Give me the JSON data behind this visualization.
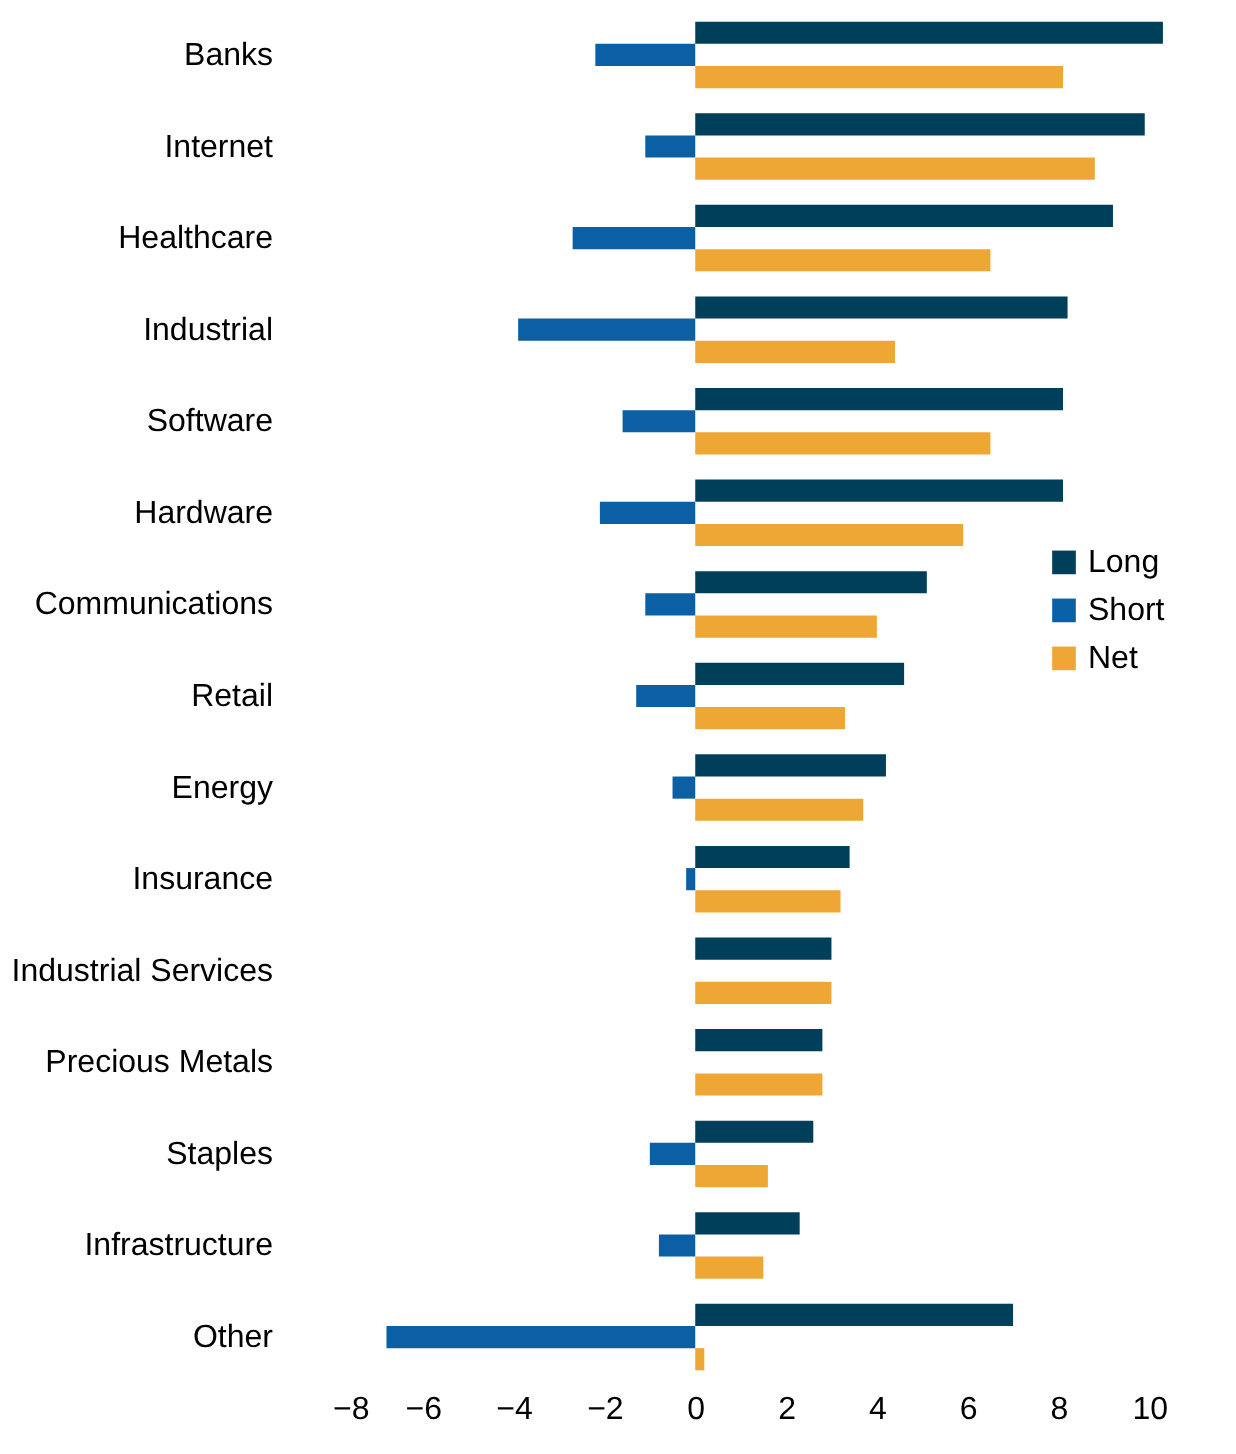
{
  "chart_data": {
    "type": "bar",
    "orientation": "horizontal",
    "categories": [
      "Banks",
      "Internet",
      "Healthcare",
      "Industrial",
      "Software",
      "Hardware",
      "Communications",
      "Retail",
      "Energy",
      "Insurance",
      "Industrial Services",
      "Precious Metals",
      "Staples",
      "Infrastructure",
      "Other"
    ],
    "series": [
      {
        "name": "Long",
        "color": "#003f5a",
        "values": [
          10.3,
          9.9,
          9.2,
          8.2,
          8.1,
          8.1,
          5.1,
          4.6,
          4.2,
          3.4,
          3.0,
          2.8,
          2.6,
          2.3,
          7.0
        ]
      },
      {
        "name": "Short",
        "color": "#0b5fa5",
        "values": [
          -2.2,
          -1.1,
          -2.7,
          -3.9,
          -1.6,
          -2.1,
          -1.1,
          -1.3,
          -0.5,
          -0.2,
          null,
          null,
          -1.0,
          -0.8,
          -6.8
        ]
      },
      {
        "name": "Net",
        "color": "#eea734",
        "values": [
          8.1,
          8.8,
          6.5,
          4.4,
          6.5,
          5.9,
          4.0,
          3.3,
          3.7,
          3.2,
          3.0,
          2.8,
          1.6,
          1.5,
          0.2
        ]
      }
    ],
    "xlim": [
      -8,
      10.5
    ],
    "xticks": [
      -8,
      -6,
      -4,
      -2,
      0,
      2,
      4,
      6,
      8,
      10
    ],
    "legend": "right"
  }
}
